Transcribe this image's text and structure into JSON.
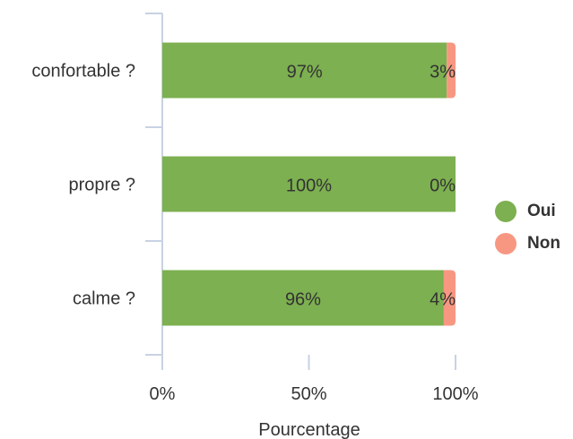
{
  "chart_data": {
    "type": "bar",
    "orientation": "horizontal",
    "stacked": true,
    "categories": [
      "confortable ?",
      "propre ?",
      "calme ?"
    ],
    "series": [
      {
        "name": "Oui",
        "color": "#7db050",
        "values": [
          97,
          100,
          96
        ],
        "labels": [
          "97%",
          "100%",
          "96%"
        ]
      },
      {
        "name": "Non",
        "color": "#f79782",
        "values": [
          3,
          0,
          4
        ],
        "labels": [
          "3%",
          "0%",
          "4%"
        ]
      }
    ],
    "xlim": [
      0,
      100
    ],
    "xticks": [
      0,
      50,
      100
    ],
    "xtick_labels": [
      "0%",
      "50%",
      "100%"
    ],
    "xlabel": "Pourcentage",
    "ylabel": "",
    "grid": false,
    "legend_position": "right"
  }
}
